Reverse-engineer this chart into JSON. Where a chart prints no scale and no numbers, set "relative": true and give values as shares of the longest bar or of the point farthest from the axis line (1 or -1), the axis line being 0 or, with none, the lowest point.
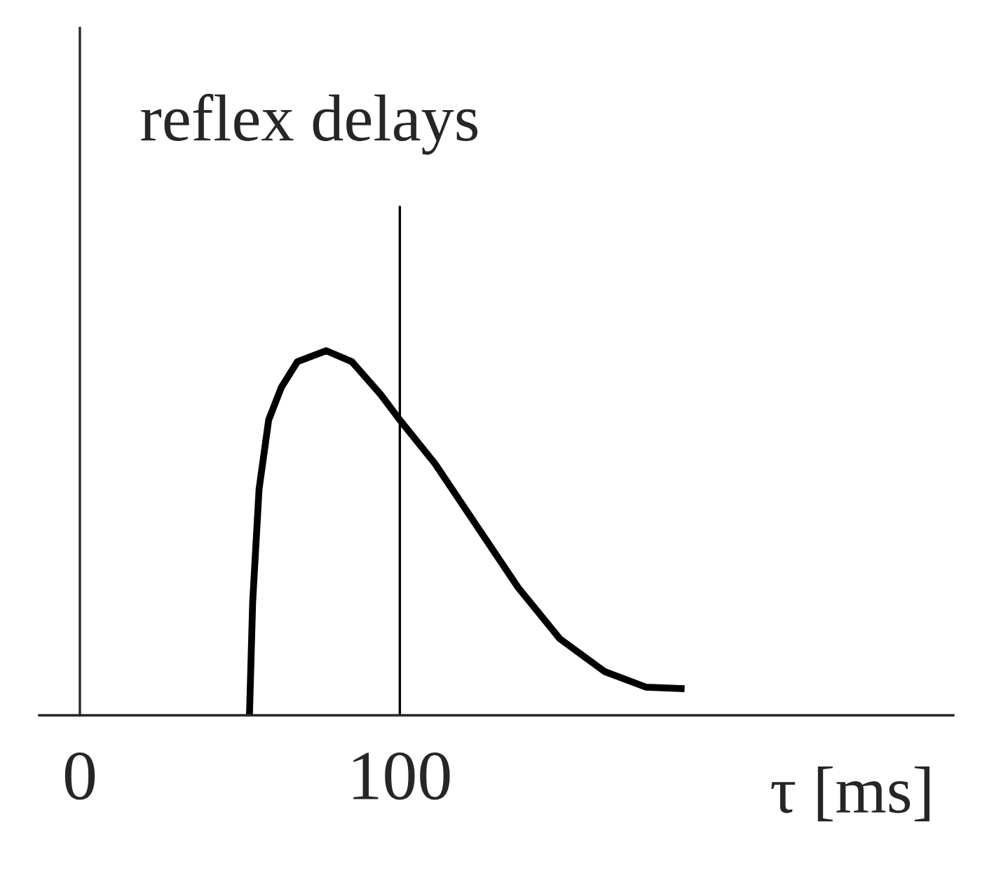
{
  "chart_data": {
    "type": "line",
    "title": "reflex delays",
    "xlabel": "τ [ms]",
    "relative": true,
    "xlim": [
      -12.7,
      273
    ],
    "xticks": [
      0,
      100
    ],
    "grid": false,
    "legend": false,
    "marker": "none",
    "line_style": "solid",
    "series": [
      {
        "color": "#000000",
        "x": [
          53,
          54,
          56,
          59,
          63,
          68,
          77,
          85,
          94,
          100,
          111,
          124,
          137,
          150,
          164,
          177,
          189
        ],
        "values": [
          0,
          0.31,
          0.62,
          0.81,
          0.9,
          0.97,
          1.0,
          0.97,
          0.88,
          0.81,
          0.69,
          0.52,
          0.35,
          0.21,
          0.12,
          0.077,
          0.073
        ]
      }
    ],
    "ref_lines": [
      {
        "axis": "x",
        "value": 100,
        "color": "#000000"
      }
    ]
  }
}
